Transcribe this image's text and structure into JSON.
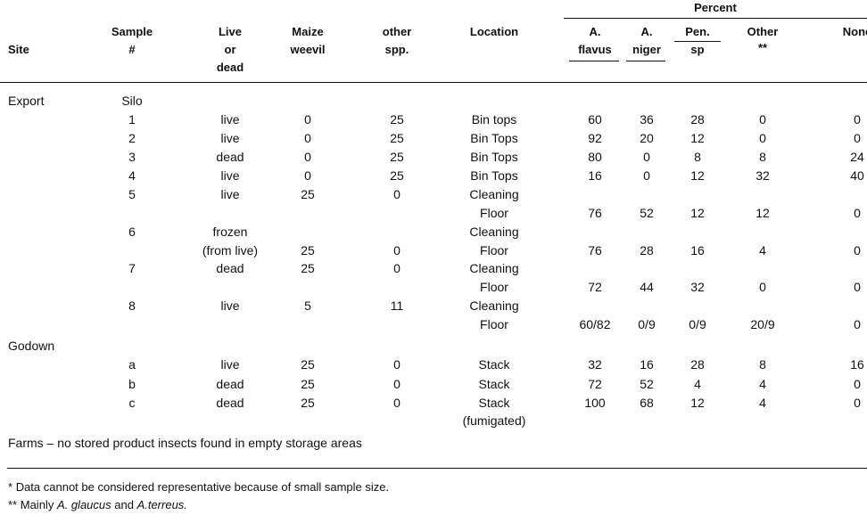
{
  "header": {
    "percent": "Percent",
    "site": "Site",
    "sample": [
      "Sample",
      "#"
    ],
    "live": [
      "Live",
      "or",
      "dead"
    ],
    "maize": [
      "Maize",
      "weevil"
    ],
    "other_spp": [
      "other",
      "spp."
    ],
    "location": "Location",
    "flavus": [
      "A.",
      "flavus"
    ],
    "niger": [
      "A.",
      "niger"
    ],
    "pen": [
      "Pen.",
      "sp"
    ],
    "other": [
      "Other",
      "**"
    ],
    "none": "None"
  },
  "lines": [
    [
      "Export",
      "Silo",
      "",
      "",
      "",
      "",
      "",
      "",
      "",
      "",
      ""
    ],
    [
      "",
      "1",
      "live",
      "0",
      "25",
      "Bin tops",
      "60",
      "36",
      "28",
      "0",
      "0"
    ],
    [
      "",
      "2",
      "live",
      "0",
      "25",
      "Bin Tops",
      "92",
      "20",
      "12",
      "0",
      "0"
    ],
    [
      "",
      "3",
      "dead",
      "0",
      "25",
      "Bin Tops",
      "80",
      "0",
      "8",
      "8",
      "24"
    ],
    [
      "",
      "4",
      "live",
      "0",
      "25",
      "Bin Tops",
      "16",
      "0",
      "12",
      "32",
      "40"
    ],
    [
      "",
      "5",
      "live",
      "25",
      "0",
      "Cleaning",
      "",
      "",
      "",
      "",
      ""
    ],
    [
      "",
      "",
      "",
      "",
      "",
      "Floor",
      "76",
      "52",
      "12",
      "12",
      "0"
    ],
    [
      "",
      "6",
      "frozen",
      "",
      "",
      "Cleaning",
      "",
      "",
      "",
      "",
      ""
    ],
    [
      "",
      "",
      "(from live)",
      "25",
      "0",
      "Floor",
      "76",
      "28",
      "16",
      "4",
      "0"
    ],
    [
      "",
      "7",
      "dead",
      "25",
      "0",
      "Cleaning",
      "",
      "",
      "",
      "",
      ""
    ],
    [
      "",
      "",
      "",
      "",
      "",
      "Floor",
      "72",
      "44",
      "32",
      "0",
      "0"
    ],
    [
      "",
      "8",
      "live",
      "5",
      "11",
      "Cleaning",
      "",
      "",
      "",
      "",
      ""
    ],
    [
      "",
      "",
      "",
      "",
      "",
      "Floor",
      "60/82",
      "0/9",
      "0/9",
      "20/9",
      "0"
    ],
    [
      "Godown",
      "",
      "",
      "",
      "",
      "",
      "",
      "",
      "",
      "",
      ""
    ],
    [
      "",
      "a",
      "live",
      "25",
      "0",
      "Stack",
      "32",
      "16",
      "28",
      "8",
      "16"
    ],
    [
      "",
      "b",
      "dead",
      "25",
      "0",
      "Stack",
      "72",
      "52",
      "4",
      "4",
      "0"
    ],
    [
      "",
      "c",
      "dead",
      "25",
      "0",
      "Stack",
      "100",
      "68",
      "12",
      "4",
      "0"
    ],
    [
      "",
      "",
      "",
      "",
      "",
      "(fumigated)",
      "",
      "",
      "",
      "",
      ""
    ]
  ],
  "farms_note": "Farms  –  no stored product insects found in empty storage areas",
  "footnotes": {
    "one_mark": "*",
    "one": "Data cannot be considered representative because of small sample size.",
    "two_mark": "**",
    "two_prefix": "Mainly ",
    "two_sp1": "A. glaucus",
    "two_mid": " and ",
    "two_sp2": "A.terreus."
  }
}
